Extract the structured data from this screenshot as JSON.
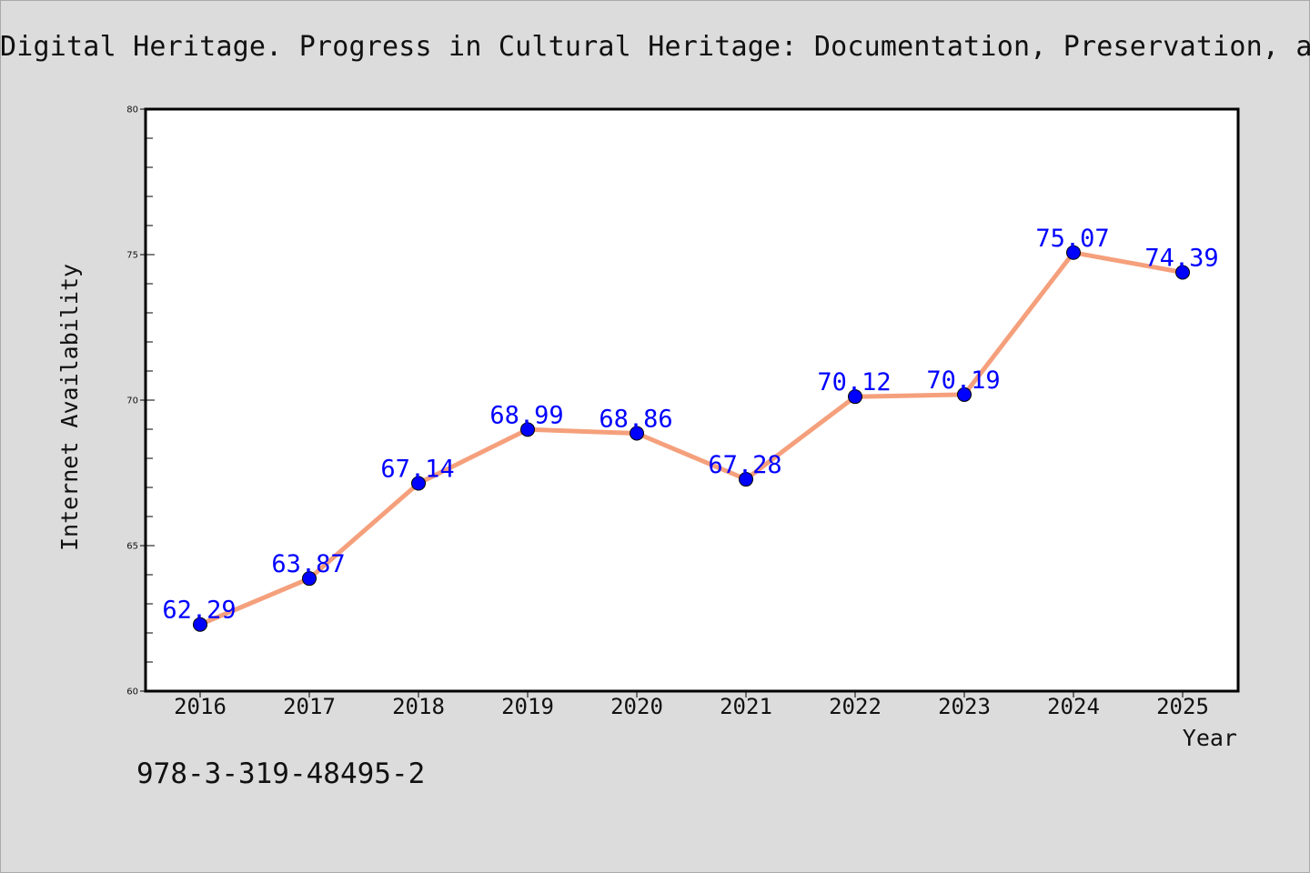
{
  "header": {
    "title": "Digital Heritage. Progress in Cultural Heritage: Documentation, Preservation, and Protection"
  },
  "footer": {
    "isbn": "978-3-319-48495-2"
  },
  "colors": {
    "background": "#dcdcdc",
    "plot_background": "#ffffff",
    "line": "#f5a07c",
    "marker": "#0000ff",
    "data_label": "#0000ff",
    "axis": "#000000"
  },
  "chart_data": {
    "type": "line",
    "title": "Digital Heritage. Progress in Cultural Heritage: Documentation, Preservation, and Protection",
    "xlabel": "Year",
    "ylabel": "Internet Availability",
    "categories": [
      "2016",
      "2017",
      "2018",
      "2019",
      "2020",
      "2021",
      "2022",
      "2023",
      "2024",
      "2025"
    ],
    "series": [
      {
        "values": [
          62.29,
          63.87,
          67.14,
          68.99,
          68.86,
          67.28,
          70.12,
          70.19,
          75.07,
          74.39
        ]
      }
    ],
    "ylim": [
      60,
      80
    ],
    "yticks": [
      60,
      65,
      70,
      75,
      80
    ],
    "data_labels": true,
    "grid": false,
    "legend": "none"
  }
}
